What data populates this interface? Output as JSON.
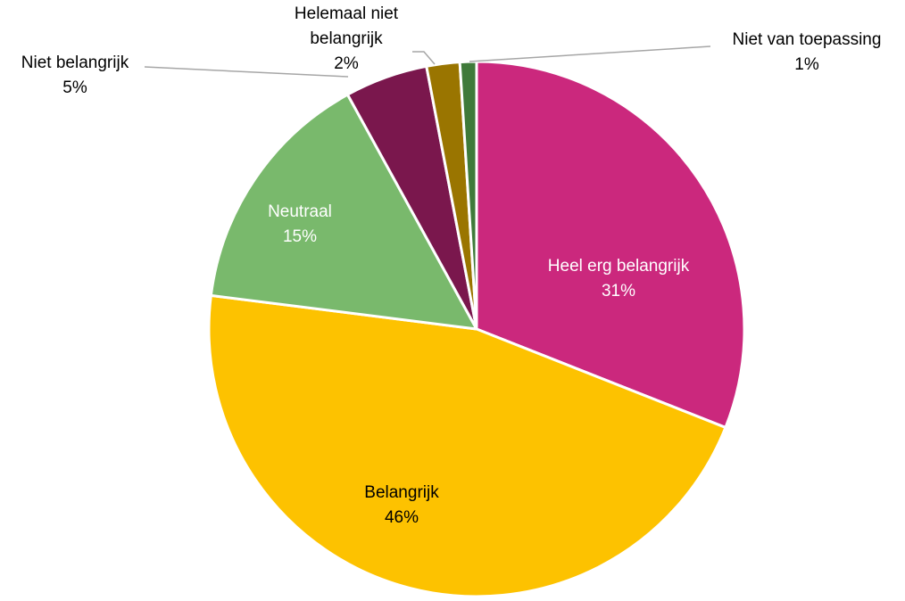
{
  "chart_data": {
    "type": "pie",
    "title": "",
    "start_angle_deg": 0,
    "direction": "clockwise",
    "slices": [
      {
        "label": "Heel erg belangrijk",
        "value": 31,
        "display": "31%",
        "color": "#CB287D"
      },
      {
        "label": "Belangrijk",
        "value": 46,
        "display": "46%",
        "color": "#FDC200"
      },
      {
        "label": "Neutraal",
        "value": 15,
        "display": "15%",
        "color": "#79B96C"
      },
      {
        "label": "Niet belangrijk",
        "value": 5,
        "display": "5%",
        "color": "#7A174D"
      },
      {
        "label": "Helemaal niet belangrijk",
        "value": 2,
        "display": "2%",
        "color": "#9A7500"
      },
      {
        "label": "Niet van toepassing",
        "value": 1,
        "display": "1%",
        "color": "#3F7A3A"
      }
    ],
    "categories": [
      "Heel erg belangrijk",
      "Belangrijk",
      "Neutraal",
      "Niet belangrijk",
      "Helemaal niet belangrijk",
      "Niet van toepassing"
    ],
    "values": [
      31,
      46,
      15,
      5,
      2,
      1
    ],
    "legend": "none (data labels with leader lines)"
  },
  "labels": {
    "heel_erg": {
      "name": "Heel erg belangrijk",
      "pct": "31%"
    },
    "belangrijk": {
      "name": "Belangrijk",
      "pct": "46%"
    },
    "neutraal": {
      "name": "Neutraal",
      "pct": "15%"
    },
    "niet": {
      "name": "Niet belangrijk",
      "pct": "5%"
    },
    "helemaal": {
      "line1": "Helemaal niet",
      "line2": "belangrijk",
      "pct": "2%"
    },
    "nvt": {
      "name": "Niet van toepassing",
      "pct": "1%"
    }
  }
}
